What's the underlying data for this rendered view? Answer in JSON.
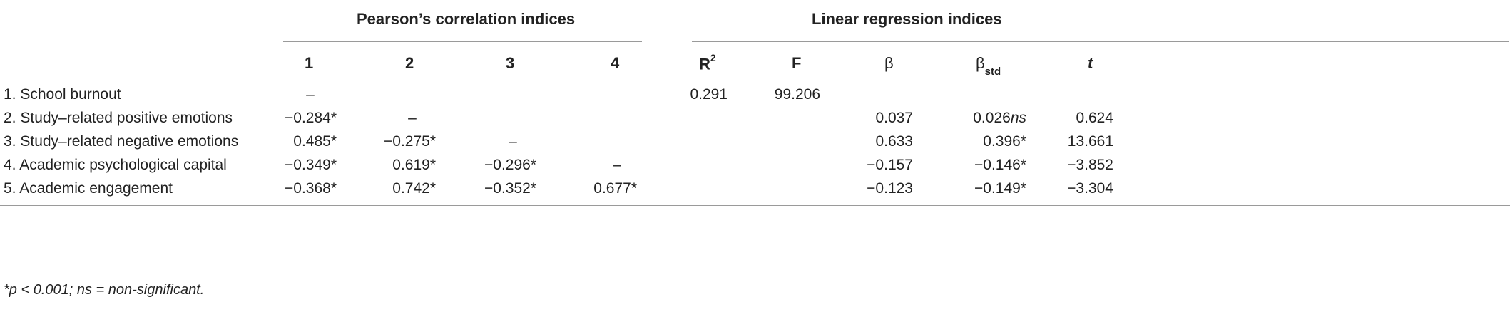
{
  "table": {
    "group_headers": {
      "pearson": "Pearson’s correlation indices",
      "regression": "Linear regression indices"
    },
    "columns": {
      "c1": "1",
      "c2": "2",
      "c3": "3",
      "c4": "4",
      "r2_base": "R",
      "r2_sup": "2",
      "f": "F",
      "beta": "β",
      "beta_std_base": "β",
      "beta_std_sub": "std",
      "t": "t"
    },
    "rows": [
      {
        "label": "1. School burnout",
        "c1": "–",
        "c2": "",
        "c3": "",
        "c4": "",
        "r2": "0.291",
        "f": "99.206",
        "beta": "",
        "beta_std": "",
        "beta_std_suffix": "",
        "t": ""
      },
      {
        "label": "2. Study–related positive emotions",
        "c1": "−0.284*",
        "c2": "–",
        "c3": "",
        "c4": "",
        "r2": "",
        "f": "",
        "beta": "0.037",
        "beta_std": "0.026",
        "beta_std_suffix": "ns",
        "t": "0.624"
      },
      {
        "label": "3. Study–related negative emotions",
        "c1": "0.485*",
        "c2": "−0.275*",
        "c3": "–",
        "c4": "",
        "r2": "",
        "f": "",
        "beta": "0.633",
        "beta_std": "0.396*",
        "beta_std_suffix": "",
        "t": "13.661"
      },
      {
        "label": "4. Academic psychological capital",
        "c1": "−0.349*",
        "c2": "0.619*",
        "c3": "−0.296*",
        "c4": "–",
        "r2": "",
        "f": "",
        "beta": "−0.157",
        "beta_std": "−0.146*",
        "beta_std_suffix": "",
        "t": "−3.852"
      },
      {
        "label": "5. Academic engagement",
        "c1": "−0.368*",
        "c2": "0.742*",
        "c3": "−0.352*",
        "c4": "0.677*",
        "r2": "",
        "f": "",
        "beta": "−0.123",
        "beta_std": "−0.149*",
        "beta_std_suffix": "",
        "t": "−3.304"
      }
    ],
    "footnote": "*p < 0.001; ns = non-significant."
  }
}
